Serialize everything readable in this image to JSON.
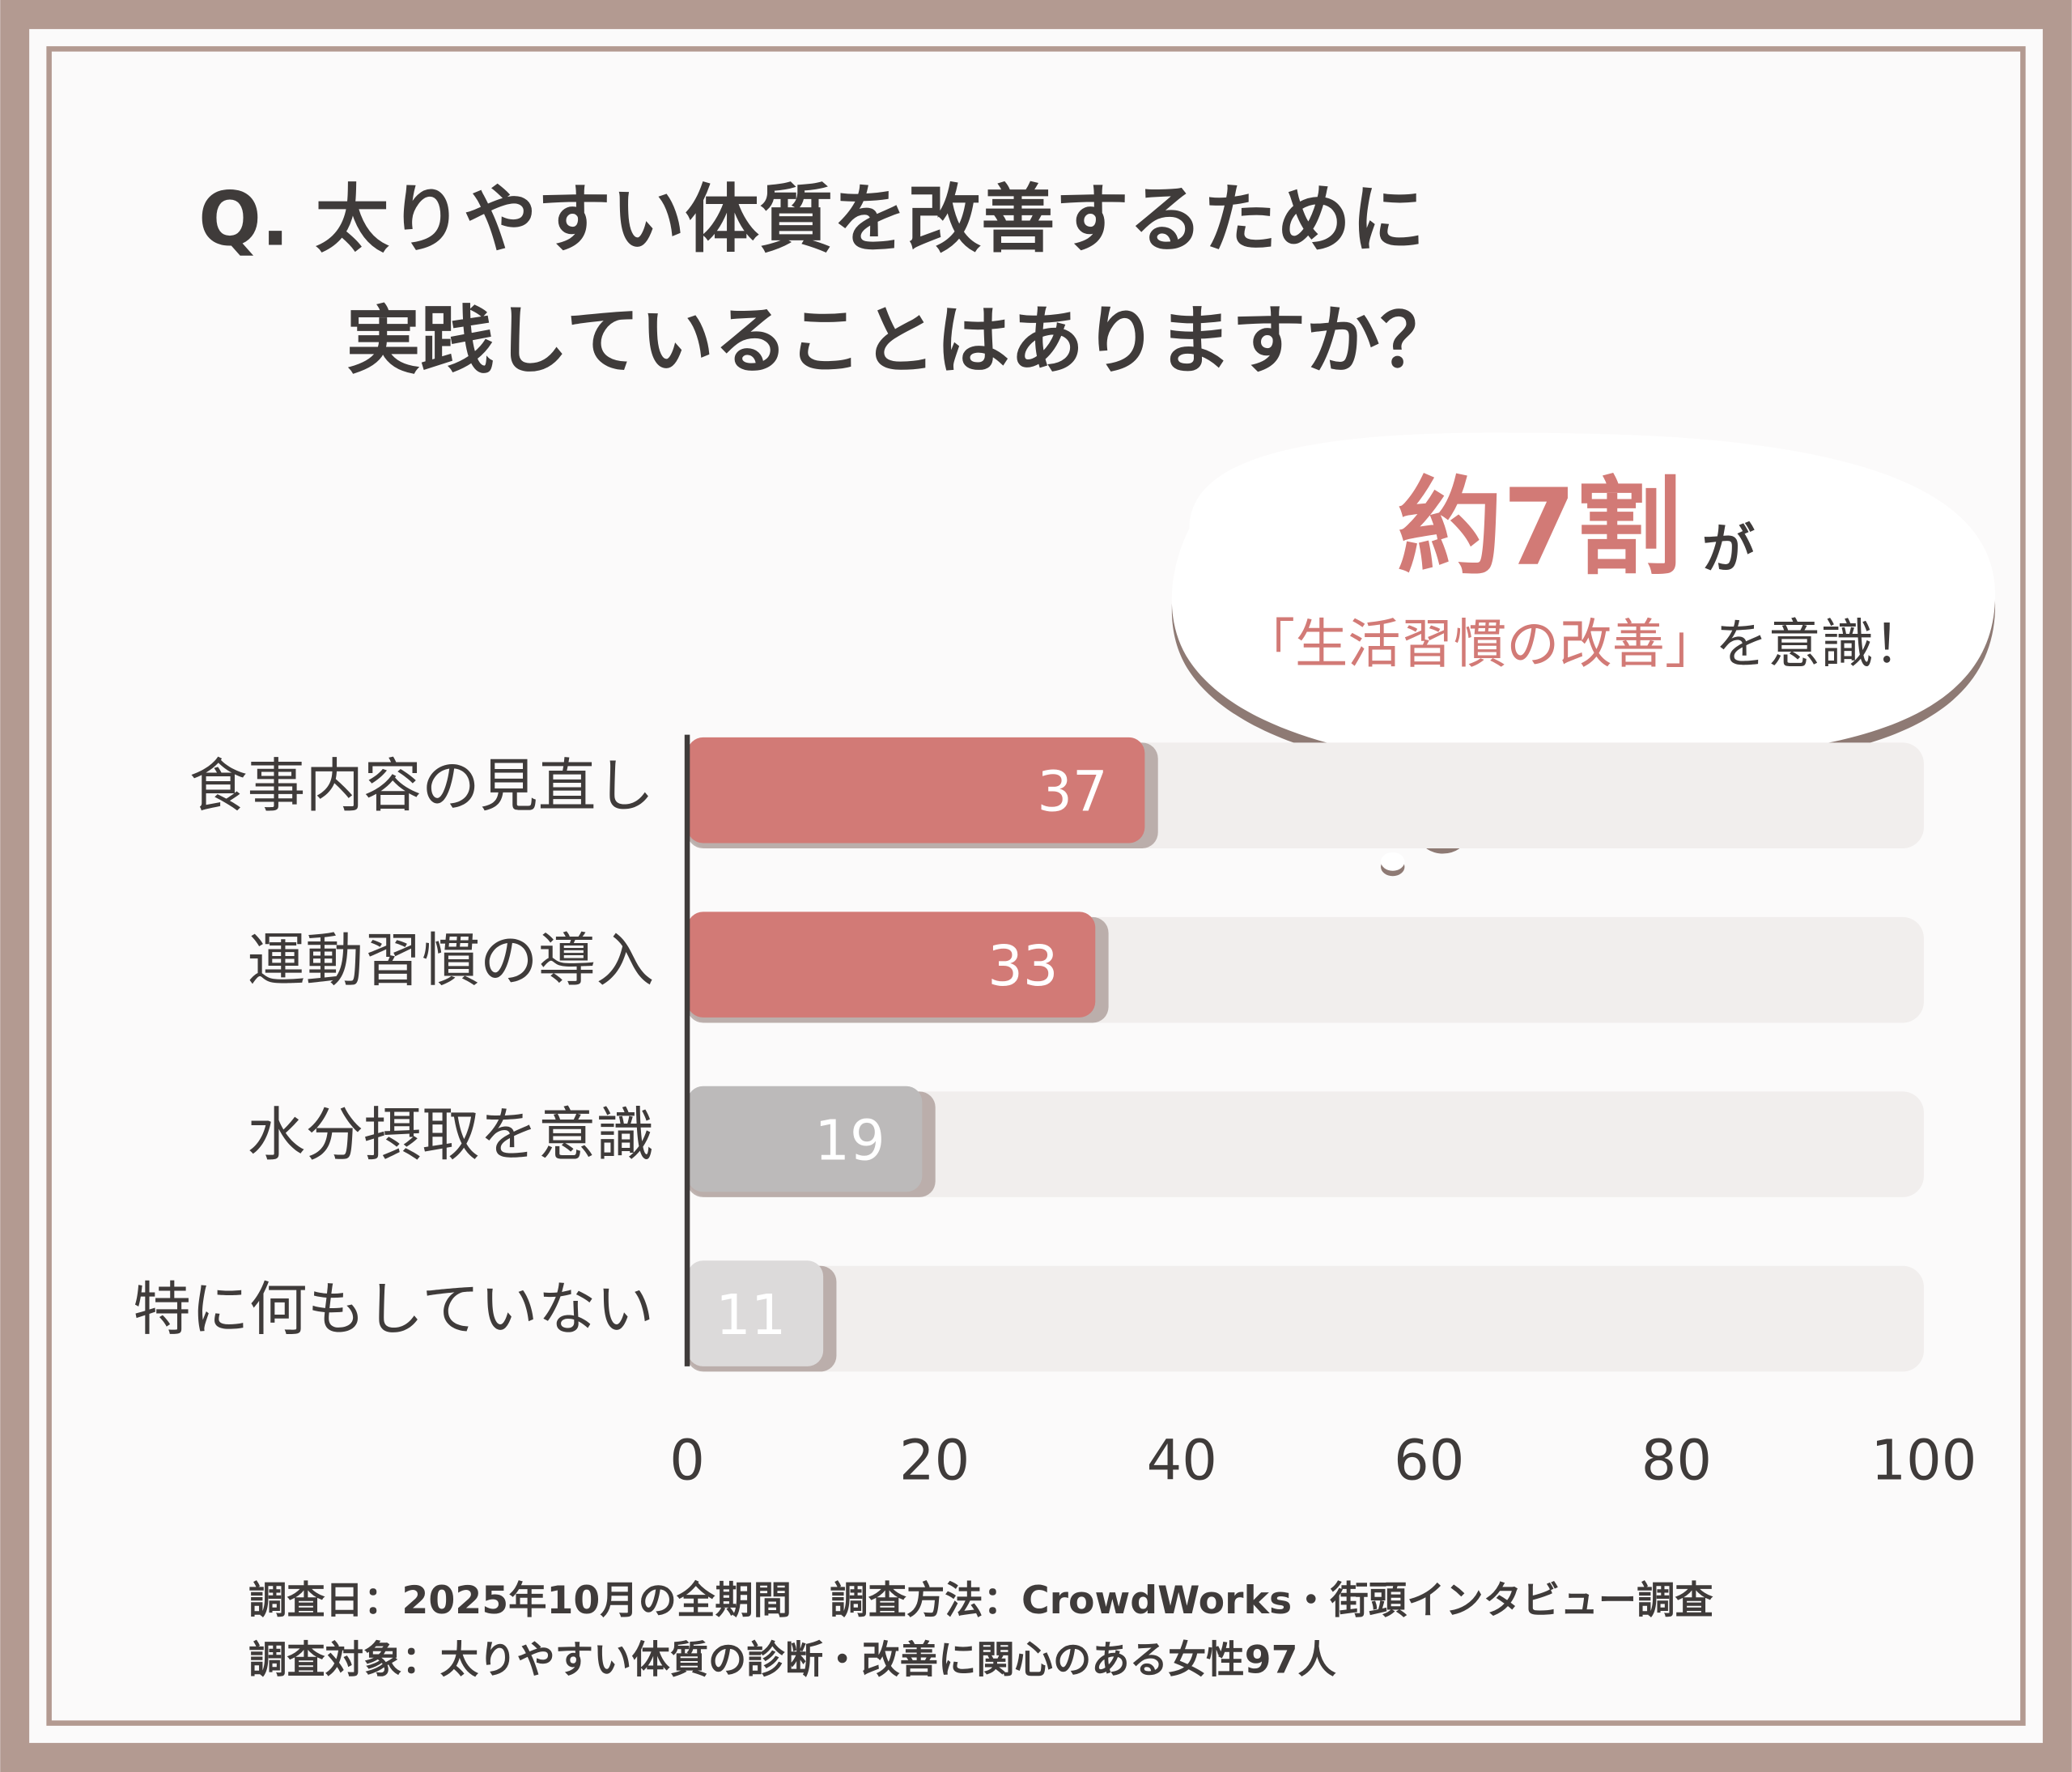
{
  "chart_data": {
    "type": "bar",
    "orientation": "horizontal",
    "title_lines": [
      "Q. 太りやすい体質を改善するために",
      "実践していることはありますか？"
    ],
    "callout": {
      "highlight": "約7割",
      "connector": "が",
      "emphasis": "「生活習慣の改善」",
      "tail": "を意識！"
    },
    "categories": [
      "食事内容の見直し",
      "運動習慣の導入",
      "水分摂取を意識",
      "特に何もしていない"
    ],
    "values": [
      37,
      33,
      19,
      11
    ],
    "colors": [
      "#d27a76",
      "#d27a76",
      "#bcbaba",
      "#dcdada"
    ],
    "track_color": "#f1eeed",
    "xlim": [
      0,
      100
    ],
    "xticks": [
      0,
      20,
      40,
      60,
      80,
      100
    ],
    "grid": false,
    "notes": [
      "調査日：2025年10月の全期間　調査方法：CrowdWorks・街頭インタビュー調査",
      "調査対象：太りやすい体質の診断・改善に関心のある女性97人"
    ]
  }
}
